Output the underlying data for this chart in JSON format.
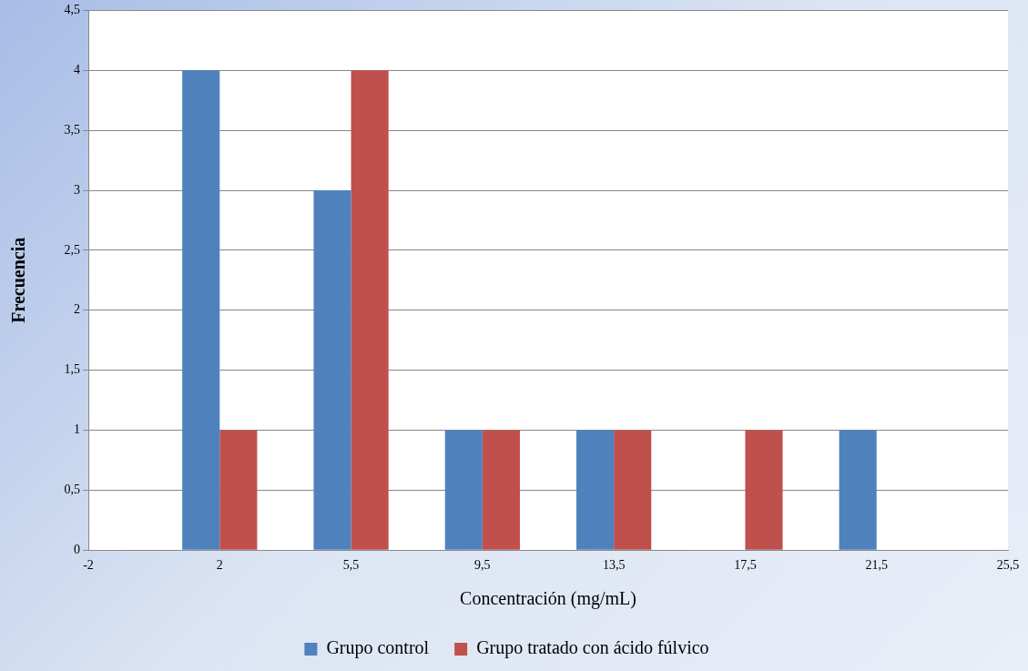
{
  "chart_data": {
    "type": "bar",
    "xlabel": "Concentración (mg/mL)",
    "ylabel": "Frecuencia",
    "categories": [
      "-2",
      "2",
      "5,5",
      "9,5",
      "13,5",
      "17,5",
      "21,5",
      "25,5"
    ],
    "series": [
      {
        "name": "Grupo control",
        "color": "#4f81bd",
        "values": [
          0,
          4,
          3,
          1,
          1,
          0,
          1,
          0
        ]
      },
      {
        "name": "Grupo tratado con ácido fúlvico",
        "color": "#c0504d",
        "values": [
          0,
          1,
          4,
          1,
          1,
          1,
          0,
          0
        ]
      }
    ],
    "ylim": [
      0,
      4.5
    ],
    "yticks": [
      0,
      {
        "value": 0.5,
        "label": "0,5"
      },
      1,
      {
        "value": 1.5,
        "label": "1,5"
      },
      2,
      {
        "value": 2.5,
        "label": "2,5"
      },
      3,
      {
        "value": 3.5,
        "label": "3,5"
      },
      4,
      {
        "value": 4.5,
        "label": "4,5"
      }
    ],
    "grid": "y",
    "legend": "bottom"
  }
}
